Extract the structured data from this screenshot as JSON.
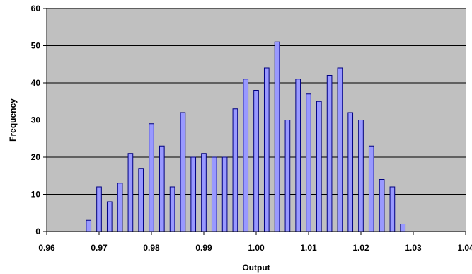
{
  "chart_data": {
    "type": "bar",
    "title": "",
    "xlabel": "Output",
    "ylabel": "Frequency",
    "xlim": [
      0.96,
      1.04
    ],
    "ylim": [
      0,
      60
    ],
    "x_ticks": [
      0.96,
      0.97,
      0.98,
      0.99,
      1.0,
      1.01,
      1.02,
      1.03,
      1.04
    ],
    "x_tick_labels": [
      "0.96",
      "0.97",
      "0.98",
      "0.99",
      "1.00",
      "1.01",
      "1.02",
      "1.03",
      "1.04"
    ],
    "y_ticks": [
      0,
      10,
      20,
      30,
      40,
      50,
      60
    ],
    "y_tick_labels": [
      "0",
      "10",
      "20",
      "30",
      "40",
      "50",
      "60"
    ],
    "grid": true,
    "legend": "none",
    "colors": {
      "plot_background": "#c0c0c0",
      "bar_fill": "#9999ff",
      "bar_stroke": "#000080",
      "gridline": "#000000"
    },
    "x": [
      0.968,
      0.97,
      0.972,
      0.974,
      0.976,
      0.978,
      0.98,
      0.982,
      0.984,
      0.986,
      0.988,
      0.99,
      0.992,
      0.994,
      0.996,
      0.998,
      1.0,
      1.002,
      1.004,
      1.006,
      1.008,
      1.01,
      1.012,
      1.014,
      1.016,
      1.018,
      1.02,
      1.022,
      1.024,
      1.026,
      1.028
    ],
    "values": [
      3,
      12,
      8,
      13,
      21,
      17,
      29,
      23,
      12,
      32,
      20,
      21,
      20,
      20,
      33,
      41,
      38,
      44,
      51,
      30,
      41,
      37,
      35,
      42,
      44,
      32,
      30,
      23,
      14,
      12,
      2
    ]
  }
}
